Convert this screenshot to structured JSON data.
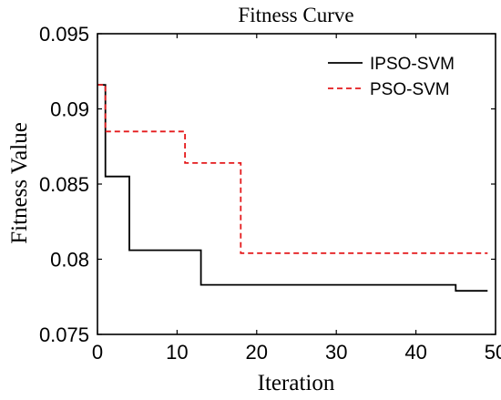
{
  "chart_data": {
    "type": "line",
    "title": "Fitness Curve",
    "xlabel": "Iteration",
    "ylabel": "Fitness Value",
    "xlim": [
      0,
      50
    ],
    "ylim": [
      0.075,
      0.095
    ],
    "xticks": [
      0,
      10,
      20,
      30,
      40,
      50
    ],
    "xtick_labels": [
      "0",
      "10",
      "20",
      "30",
      "40",
      "50"
    ],
    "yticks": [
      0.075,
      0.08,
      0.085,
      0.09,
      0.095
    ],
    "ytick_labels": [
      "0.075",
      "0.08",
      "0.085",
      "0.09",
      "0.095"
    ],
    "grid": false,
    "legend_position": "top-right",
    "series": [
      {
        "name": "IPSO-SVM",
        "color": "#000000",
        "dash": "solid",
        "step": true,
        "x": [
          0,
          1,
          3,
          4,
          12,
          13,
          44,
          45,
          49
        ],
        "y": [
          0.0916,
          0.0855,
          0.0855,
          0.0806,
          0.0806,
          0.0783,
          0.0783,
          0.0779,
          0.0779
        ]
      },
      {
        "name": "PSO-SVM",
        "color": "#e41a1c",
        "dash": "dashed",
        "step": true,
        "x": [
          0,
          1,
          10,
          11,
          17,
          18,
          49
        ],
        "y": [
          0.0916,
          0.0885,
          0.0885,
          0.0864,
          0.0864,
          0.0804,
          0.0804
        ]
      }
    ]
  }
}
